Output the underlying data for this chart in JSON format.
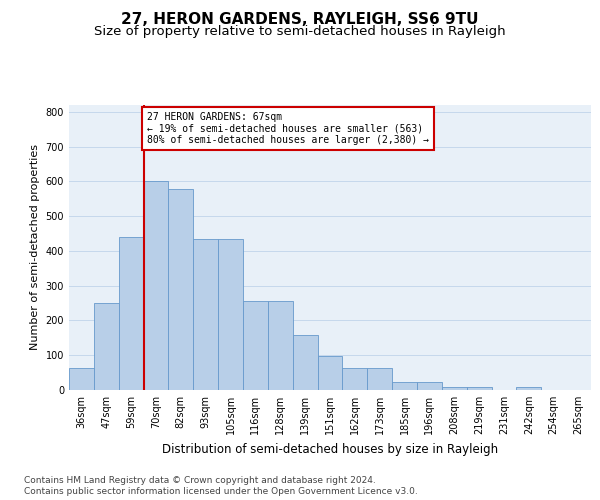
{
  "title": "27, HERON GARDENS, RAYLEIGH, SS6 9TU",
  "subtitle": "Size of property relative to semi-detached houses in Rayleigh",
  "xlabel": "Distribution of semi-detached houses by size in Rayleigh",
  "ylabel": "Number of semi-detached properties",
  "categories": [
    "36sqm",
    "47sqm",
    "59sqm",
    "70sqm",
    "82sqm",
    "93sqm",
    "105sqm",
    "116sqm",
    "128sqm",
    "139sqm",
    "151sqm",
    "162sqm",
    "173sqm",
    "185sqm",
    "196sqm",
    "208sqm",
    "219sqm",
    "231sqm",
    "242sqm",
    "254sqm",
    "265sqm"
  ],
  "values": [
    63,
    250,
    440,
    600,
    578,
    435,
    435,
    255,
    255,
    157,
    97,
    63,
    63,
    23,
    23,
    10,
    10,
    0,
    8,
    0,
    0
  ],
  "bar_color": "#b8cfe8",
  "bar_edge_color": "#6699cc",
  "grid_color": "#c5d8ec",
  "bg_color": "#e8f0f8",
  "vline_color": "#cc0000",
  "annotation_text": "27 HERON GARDENS: 67sqm\n← 19% of semi-detached houses are smaller (563)\n80% of semi-detached houses are larger (2,380) →",
  "annotation_box_color": "#cc0000",
  "ylim": [
    0,
    820
  ],
  "yticks": [
    0,
    100,
    200,
    300,
    400,
    500,
    600,
    700,
    800
  ],
  "footer_line1": "Contains HM Land Registry data © Crown copyright and database right 2024.",
  "footer_line2": "Contains public sector information licensed under the Open Government Licence v3.0.",
  "title_fontsize": 11,
  "subtitle_fontsize": 9.5,
  "ylabel_fontsize": 8,
  "xlabel_fontsize": 8.5,
  "tick_fontsize": 7,
  "footer_fontsize": 6.5
}
